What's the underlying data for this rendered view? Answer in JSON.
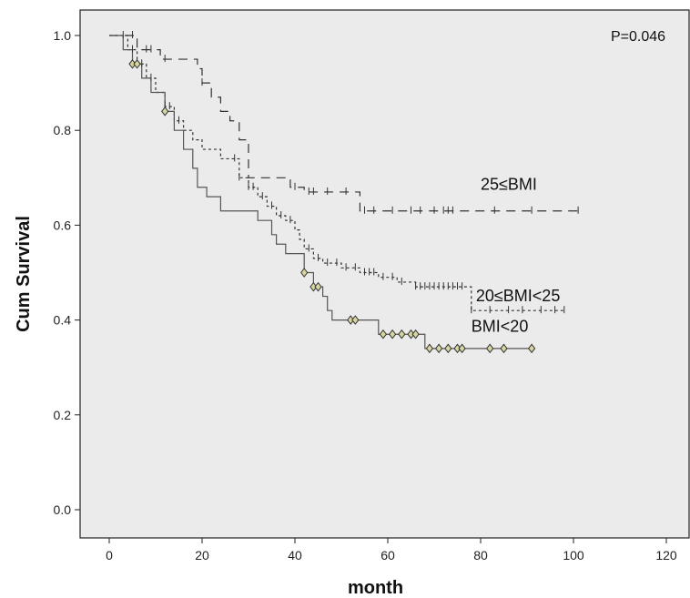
{
  "chart_data": {
    "type": "line",
    "title": "",
    "xlabel": "month",
    "ylabel": "Cum Survival",
    "xlim": [
      -6,
      124
    ],
    "ylim": [
      -0.06,
      1.06
    ],
    "xticks": [
      0,
      20,
      40,
      60,
      80,
      100,
      120
    ],
    "xtick_labels": [
      "0",
      "20",
      "40",
      "60",
      "80",
      "100",
      "120"
    ],
    "yticks": [
      0.0,
      0.2,
      0.4,
      0.6,
      0.8,
      1.0
    ],
    "ytick_labels": [
      "0.0",
      "0.2",
      "0.4",
      "0.6",
      "0.8",
      "1.0"
    ],
    "grid": false,
    "background": "#ebebeb",
    "pvalue": "P=0.046",
    "series": [
      {
        "name": "25≤BMI",
        "style": "long-dash",
        "color": "#333333",
        "steps": [
          [
            0,
            1.0
          ],
          [
            6,
            0.97
          ],
          [
            11,
            0.95
          ],
          [
            19,
            0.93
          ],
          [
            20,
            0.9
          ],
          [
            22,
            0.87
          ],
          [
            24,
            0.84
          ],
          [
            26,
            0.82
          ],
          [
            28,
            0.78
          ],
          [
            30,
            0.7
          ],
          [
            39,
            0.68
          ],
          [
            42,
            0.67
          ],
          [
            54,
            0.63
          ],
          [
            101,
            0.63
          ]
        ],
        "censored_x": [
          3,
          5,
          8,
          9,
          12,
          20,
          40,
          43,
          44,
          47,
          51,
          55,
          57,
          61,
          65,
          67,
          70,
          72,
          73,
          74,
          83,
          91,
          101
        ],
        "censor_marker": "plus"
      },
      {
        "name": "20≤BMI<25",
        "style": "short-dash",
        "color": "#333333",
        "steps": [
          [
            0,
            1.0
          ],
          [
            4,
            0.97
          ],
          [
            6,
            0.94
          ],
          [
            8,
            0.91
          ],
          [
            10,
            0.88
          ],
          [
            12,
            0.85
          ],
          [
            14,
            0.82
          ],
          [
            16,
            0.8
          ],
          [
            18,
            0.78
          ],
          [
            20,
            0.76
          ],
          [
            24,
            0.74
          ],
          [
            28,
            0.7
          ],
          [
            30,
            0.68
          ],
          [
            32,
            0.66
          ],
          [
            34,
            0.64
          ],
          [
            36,
            0.62
          ],
          [
            38,
            0.61
          ],
          [
            40,
            0.59
          ],
          [
            41,
            0.57
          ],
          [
            42,
            0.55
          ],
          [
            44,
            0.53
          ],
          [
            46,
            0.52
          ],
          [
            50,
            0.51
          ],
          [
            54,
            0.5
          ],
          [
            58,
            0.49
          ],
          [
            62,
            0.48
          ],
          [
            66,
            0.47
          ],
          [
            70,
            0.47
          ],
          [
            78,
            0.42
          ],
          [
            98,
            0.42
          ]
        ],
        "censored_x": [
          5,
          7,
          9,
          12,
          13,
          15,
          27,
          28,
          30,
          31,
          33,
          35,
          37,
          39,
          43,
          45,
          47,
          49,
          51,
          53,
          55,
          56,
          57,
          59,
          61,
          63,
          66,
          67,
          68,
          69,
          70,
          71,
          72,
          73,
          74,
          75,
          76,
          78,
          82,
          86,
          89,
          93,
          96,
          98
        ],
        "censor_marker": "plus"
      },
      {
        "name": "BMI<20",
        "style": "solid",
        "color": "#555555",
        "steps": [
          [
            0,
            1.0
          ],
          [
            3,
            0.97
          ],
          [
            5,
            0.94
          ],
          [
            7,
            0.91
          ],
          [
            9,
            0.88
          ],
          [
            12,
            0.84
          ],
          [
            14,
            0.8
          ],
          [
            16,
            0.76
          ],
          [
            18,
            0.72
          ],
          [
            19,
            0.68
          ],
          [
            21,
            0.66
          ],
          [
            24,
            0.63
          ],
          [
            32,
            0.61
          ],
          [
            35,
            0.58
          ],
          [
            36,
            0.56
          ],
          [
            38,
            0.54
          ],
          [
            42,
            0.5
          ],
          [
            44,
            0.47
          ],
          [
            46,
            0.45
          ],
          [
            47,
            0.42
          ],
          [
            48,
            0.4
          ],
          [
            58,
            0.37
          ],
          [
            68,
            0.34
          ],
          [
            91,
            0.34
          ]
        ],
        "censored_x": [
          5,
          6,
          12,
          42,
          44,
          45,
          52,
          53,
          59,
          61,
          63,
          65,
          66,
          69,
          71,
          73,
          75,
          76,
          82,
          85,
          91
        ],
        "censor_marker": "diamond"
      }
    ],
    "annotations": [
      {
        "text": "25≤BMI",
        "x": 80,
        "y": 0.675
      },
      {
        "text": "20≤BMI<25",
        "x": 79,
        "y": 0.44
      },
      {
        "text": "BMI<20",
        "x": 78,
        "y": 0.375
      }
    ]
  }
}
